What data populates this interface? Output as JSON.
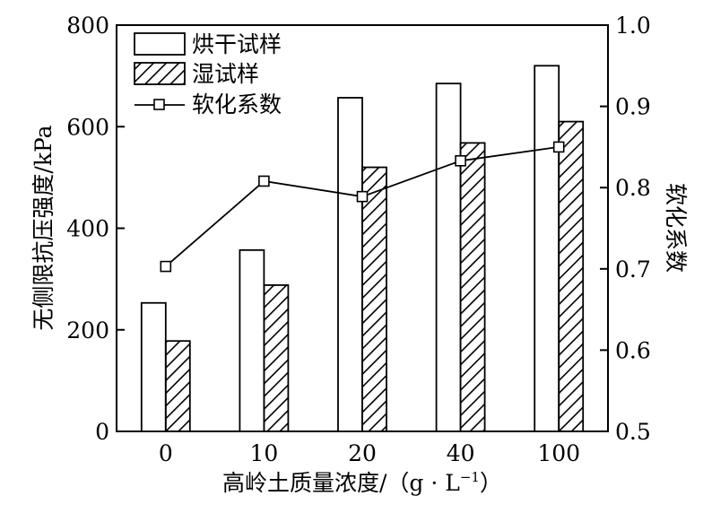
{
  "chart_data": {
    "type": "bar",
    "categories": [
      "0",
      "10",
      "20",
      "40",
      "100"
    ],
    "series": [
      {
        "name": "烘干试样",
        "type": "bar",
        "axis": "left",
        "fill": "white",
        "values": [
          253,
          357,
          657,
          685,
          720
        ]
      },
      {
        "name": "湿试样",
        "type": "bar",
        "axis": "left",
        "fill": "hatched",
        "values": [
          178,
          288,
          520,
          568,
          610
        ]
      },
      {
        "name": "软化系数",
        "type": "line",
        "axis": "right",
        "marker": "square",
        "values": [
          0.703,
          0.808,
          0.789,
          0.833,
          0.85
        ]
      }
    ],
    "xlabel": "高岭土质量浓度/（g · L",
    "xlabel_sup": "−1",
    "xlabel_end": "）",
    "ylabel": "无侧限抗压强度/kPa",
    "ylabel_right": "软化系数",
    "ylim": [
      0,
      800
    ],
    "ylim_right": [
      0.5,
      1.0
    ],
    "yticks": [
      "0",
      "200",
      "400",
      "600",
      "800"
    ],
    "yticks_right": [
      "0.5",
      "0.6",
      "0.7",
      "0.8",
      "0.9",
      "1.0"
    ],
    "grid": false,
    "legend_position": "top-left",
    "colors": {
      "line": "#000000",
      "bar_stroke": "#000000",
      "bar_fill": "#ffffff"
    }
  }
}
